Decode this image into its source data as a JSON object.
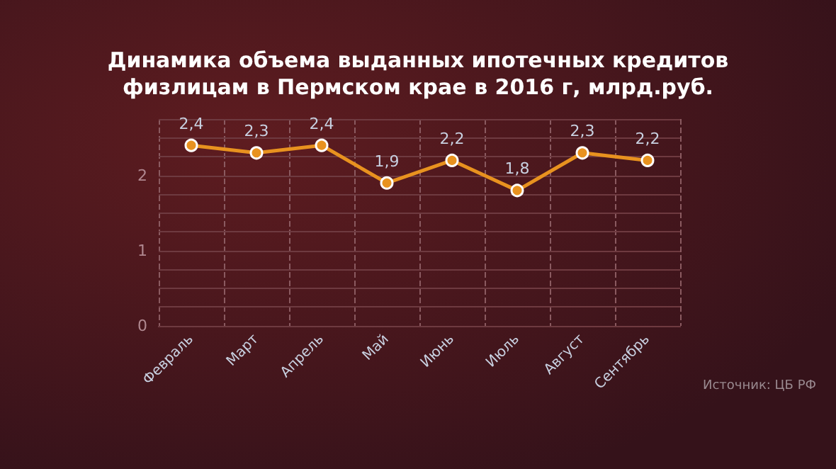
{
  "chart_data": {
    "type": "line",
    "title": "Динамика объема выданных ипотечных кредитов\nфизлицам в Пермском крае в 2016 г, млрд.руб.",
    "categories": [
      "Февраль",
      "Март",
      "Апрель",
      "Май",
      "Июнь",
      "Июль",
      "Август",
      "Сентябрь"
    ],
    "series": [
      {
        "color": "#e8921f",
        "values": [
          2.4,
          2.3,
          2.4,
          1.9,
          2.2,
          1.8,
          2.3,
          2.2
        ],
        "value_labels": [
          "2,4",
          "2,3",
          "2,4",
          "1,9",
          "2,2",
          "1,8",
          "2,3",
          "2,2"
        ]
      }
    ],
    "ylim": [
      0,
      2.75
    ],
    "yticks": [
      0,
      {
        "value": 0.25,
        "label": null
      },
      {
        "value": 0.5,
        "label": null
      },
      {
        "value": 0.75,
        "label": null
      },
      1,
      {
        "value": 1.25,
        "label": null
      },
      {
        "value": 1.5,
        "label": null
      },
      {
        "value": 1.75,
        "label": null
      },
      2,
      {
        "value": 2.25,
        "label": null
      },
      {
        "value": 2.5,
        "label": null
      },
      {
        "value": 2.75,
        "label": null
      }
    ],
    "grid": true,
    "marker": "circle",
    "line_style": "solid",
    "annotations": [
      "Источник: ЦБ РФ"
    ]
  }
}
